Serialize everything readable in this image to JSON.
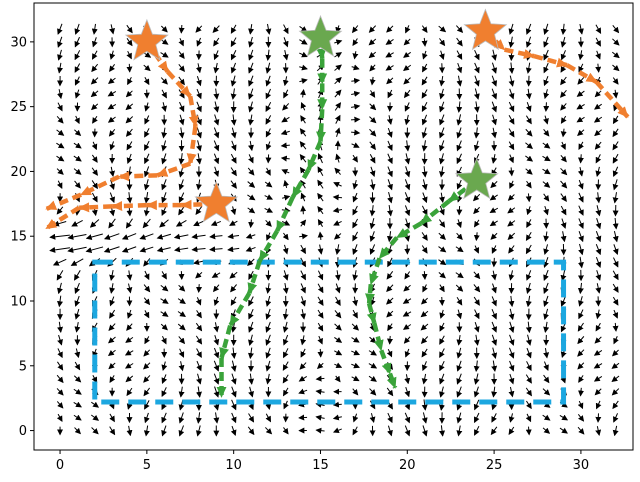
{
  "chart_data": {
    "type": "quiver",
    "title": "",
    "xlabel": "",
    "ylabel": "",
    "xlim": [
      -1.5,
      33
    ],
    "ylim": [
      -1.5,
      33
    ],
    "grid": false,
    "x_ticks": [
      0,
      5,
      10,
      15,
      20,
      25,
      30
    ],
    "y_ticks": [
      0,
      5,
      10,
      15,
      20,
      25,
      30
    ],
    "x_tick_labels": [
      "0",
      "5",
      "10",
      "15",
      "20",
      "25",
      "30"
    ],
    "y_tick_labels": [
      "0",
      "5",
      "10",
      "15",
      "20",
      "25",
      "30"
    ],
    "quiver_field": {
      "color": "#000000",
      "grid_x_range": [
        0,
        32
      ],
      "grid_y_range": [
        0,
        31
      ],
      "grid_spacing": 1,
      "description": "dense black vector field on a 1-unit grid; strong leftward flow near y=13-16 at the left edge, mostly downward flow elsewhere"
    },
    "region": {
      "name": "",
      "color": "#1ca7e0",
      "style": "dashed",
      "x": [
        2,
        29
      ],
      "y": [
        2.2,
        13
      ]
    },
    "stars": [
      {
        "x": 5,
        "y": 30,
        "color": "#f07f2f"
      },
      {
        "x": 9,
        "y": 17.5,
        "color": "#f07f2f"
      },
      {
        "x": 24.5,
        "y": 30.8,
        "color": "#f07f2f"
      },
      {
        "x": 15,
        "y": 30.3,
        "color": "#6aa84f"
      },
      {
        "x": 24,
        "y": 19.3,
        "color": "#6aa84f"
      }
    ],
    "series": [
      {
        "color": "#f07f2f",
        "points": [
          [
            5,
            30
          ],
          [
            6.2,
            27.7
          ],
          [
            7.5,
            25.8
          ],
          [
            7.8,
            23.5
          ],
          [
            7.5,
            20.6
          ],
          [
            5.6,
            19.7
          ],
          [
            3.4,
            19.6
          ],
          [
            1.2,
            18.2
          ],
          [
            -0.8,
            17.1
          ]
        ]
      },
      {
        "color": "#f07f2f",
        "points": [
          [
            9,
            17.5
          ],
          [
            7,
            17.4
          ],
          [
            5,
            17.4
          ],
          [
            3,
            17.3
          ],
          [
            1.1,
            17.2
          ],
          [
            -0.8,
            15.6
          ]
        ]
      },
      {
        "color": "#f07f2f",
        "points": [
          [
            24.5,
            30.8
          ],
          [
            25.6,
            29.4
          ],
          [
            27.3,
            28.9
          ],
          [
            29.2,
            28.2
          ],
          [
            30.9,
            26.9
          ],
          [
            32.7,
            24.2
          ]
        ]
      },
      {
        "color": "#3aa33a",
        "points": [
          [
            15,
            30.3
          ],
          [
            15.1,
            28.7
          ],
          [
            15.1,
            26.8
          ],
          [
            15.1,
            24.8
          ],
          [
            15,
            22.3
          ],
          [
            14.3,
            20.1
          ],
          [
            13.4,
            18
          ],
          [
            12.5,
            15.4
          ],
          [
            11.5,
            13.1
          ],
          [
            10.9,
            10.6
          ],
          [
            9.8,
            8.1
          ],
          [
            9.3,
            5.6
          ],
          [
            9.3,
            2.6
          ]
        ]
      },
      {
        "color": "#3aa33a",
        "points": [
          [
            24,
            19.3
          ],
          [
            22.4,
            17.7
          ],
          [
            20.8,
            16
          ],
          [
            19.4,
            14.9
          ],
          [
            18.4,
            13.3
          ],
          [
            17.9,
            11.3
          ],
          [
            17.8,
            9.8
          ],
          [
            18.1,
            8.3
          ],
          [
            18.5,
            6.2
          ],
          [
            19,
            4.4
          ],
          [
            19.3,
            3.3
          ]
        ]
      }
    ]
  }
}
